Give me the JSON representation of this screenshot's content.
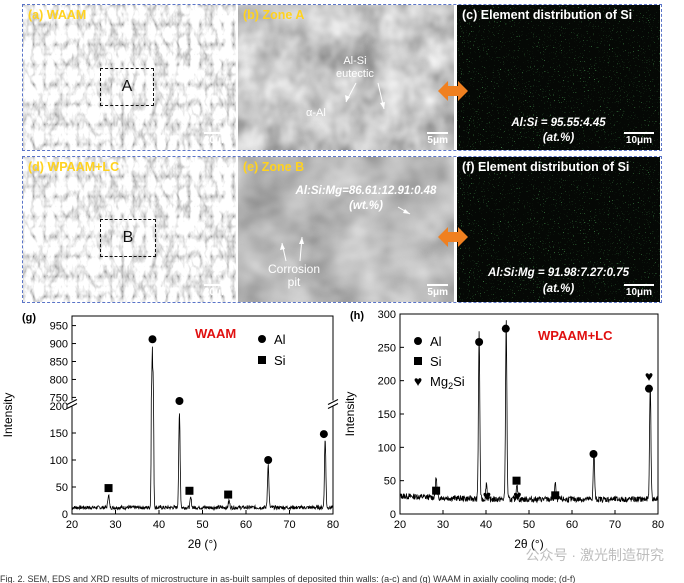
{
  "panels": {
    "a": {
      "label": "(a)",
      "title": "WAAM",
      "box": "A",
      "scale": "20μm"
    },
    "b": {
      "label": "(b)",
      "title": "Zone A",
      "ann1": "Al-Si\neutectic",
      "ann2": "α-Al",
      "scale": "5μm"
    },
    "c": {
      "label": "(c)",
      "title": "Element distribution of Si",
      "ratio": "Al:Si = 95.55:4.45",
      "unit": "(at.%)",
      "scale": "10μm"
    },
    "d": {
      "label": "(d)",
      "title": "WPAAM+LC",
      "box": "B",
      "scale": "20μm"
    },
    "e": {
      "label": "(e)",
      "title": "Zone B",
      "ratio": "Al:Si:Mg=86.61:12.91:0.48",
      "unit": "(wt.%)",
      "ann": "Corrosion\npit",
      "scale": "5μm"
    },
    "f": {
      "label": "(f)",
      "title": "Element distribution of Si",
      "ratio": "Al:Si:Mg = 91.98:7.27:0.75",
      "unit": "(at.%)",
      "scale": "10μm"
    }
  },
  "colors": {
    "accent_yellow": "#ffd21f",
    "xrd_label_red": "#e01010",
    "arrow_orange": "#f08020",
    "eds_green": "#38c838",
    "row_border": "#5a74c8"
  },
  "chart_data": [
    {
      "type": "line",
      "panel_label": "(g)",
      "title": "WAAM",
      "xlabel": "2θ (°)",
      "ylabel": "Intensity",
      "xlim": [
        20,
        80
      ],
      "ylim_lower": [
        0,
        200
      ],
      "ylim_upper": [
        740,
        960
      ],
      "xticks": [
        20,
        30,
        40,
        50,
        60,
        70,
        80
      ],
      "yticks_lower": [
        0,
        50,
        100,
        150,
        200
      ],
      "yticks_upper": [
        750,
        800,
        850,
        900,
        950
      ],
      "axis_break": true,
      "legend": [
        {
          "symbol": "circle",
          "name": "Al"
        },
        {
          "symbol": "square",
          "name": "Si"
        }
      ],
      "legend_position": "upper-right",
      "background": 12,
      "peaks": [
        {
          "x": 28.4,
          "y": 25,
          "phase": "Si"
        },
        {
          "x": 38.5,
          "y": 885,
          "phase": "Al"
        },
        {
          "x": 44.7,
          "y": 175,
          "phase": "Al"
        },
        {
          "x": 47.3,
          "y": 18,
          "phase": "Si"
        },
        {
          "x": 56.1,
          "y": 13,
          "phase": "Si"
        },
        {
          "x": 65.1,
          "y": 80,
          "phase": "Al"
        },
        {
          "x": 78.2,
          "y": 128,
          "phase": "Al"
        }
      ],
      "markers": [
        {
          "x": 28.4,
          "y": 48,
          "symbol": "square"
        },
        {
          "x": 38.5,
          "y": 912,
          "symbol": "circle"
        },
        {
          "x": 44.7,
          "y": 740,
          "symbol": "circle"
        },
        {
          "x": 47.0,
          "y": 43,
          "symbol": "square"
        },
        {
          "x": 55.9,
          "y": 36,
          "symbol": "square"
        },
        {
          "x": 65.1,
          "y": 100,
          "symbol": "circle"
        },
        {
          "x": 77.9,
          "y": 148,
          "symbol": "circle"
        }
      ]
    },
    {
      "type": "line",
      "panel_label": "(h)",
      "title": "WPAAM+LC",
      "xlabel": "2θ (°)",
      "ylabel": "Intensity",
      "xlim": [
        20,
        80
      ],
      "ylim": [
        0,
        300
      ],
      "xticks": [
        20,
        30,
        40,
        50,
        60,
        70,
        80
      ],
      "yticks": [
        0,
        50,
        100,
        150,
        200,
        250,
        300
      ],
      "legend": [
        {
          "symbol": "circle",
          "name": "Al"
        },
        {
          "symbol": "square",
          "name": "Si"
        },
        {
          "symbol": "heart",
          "name": "Mg",
          "sub": "2",
          "tail": "Si"
        }
      ],
      "legend_position": "upper-left",
      "background": 22,
      "peaks": [
        {
          "x": 28.4,
          "y": 30,
          "phase": "Si"
        },
        {
          "x": 38.4,
          "y": 248,
          "phase": "Al"
        },
        {
          "x": 40.1,
          "y": 25,
          "phase": "Mg2Si"
        },
        {
          "x": 44.7,
          "y": 270,
          "phase": "Al"
        },
        {
          "x": 47.2,
          "y": 25,
          "phase": "Si"
        },
        {
          "x": 56.1,
          "y": 24,
          "phase": "Si"
        },
        {
          "x": 65.1,
          "y": 72,
          "phase": "Al"
        },
        {
          "x": 78.2,
          "y": 172,
          "phase": "Al"
        }
      ],
      "markers": [
        {
          "x": 28.4,
          "y": 35,
          "symbol": "square"
        },
        {
          "x": 38.4,
          "y": 258,
          "symbol": "circle"
        },
        {
          "x": 40.2,
          "y": 28,
          "symbol": "heart"
        },
        {
          "x": 44.6,
          "y": 278,
          "symbol": "circle"
        },
        {
          "x": 47.1,
          "y": 50,
          "symbol": "square"
        },
        {
          "x": 47.3,
          "y": 28,
          "symbol": "heart"
        },
        {
          "x": 56.1,
          "y": 28,
          "symbol": "square"
        },
        {
          "x": 65.0,
          "y": 90,
          "symbol": "circle"
        },
        {
          "x": 77.9,
          "y": 188,
          "symbol": "circle"
        },
        {
          "x": 77.9,
          "y": 207,
          "symbol": "heart"
        }
      ]
    }
  ],
  "watermark": "公众号 · 激光制造研究",
  "caption": "Fig. 2. SEM, EDS and XRD results of microstructure in as-built samples of deposited thin walls: (a-c) and (g) WAAM in axially cooling mode; (d-f)"
}
